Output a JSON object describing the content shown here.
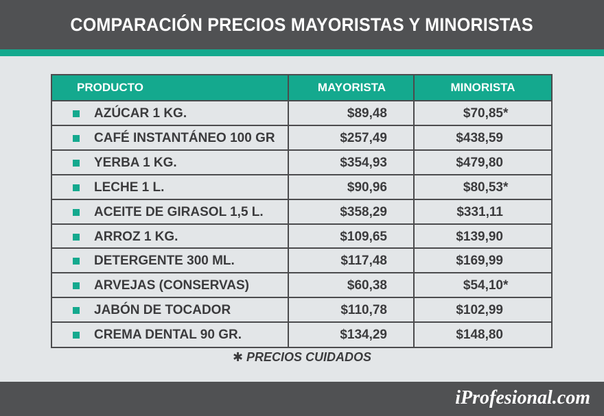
{
  "title": "COMPARACIÓN PRECIOS MAYORISTAS Y MINORISTAS",
  "table": {
    "headers": [
      "PRODUCTO",
      "MAYORISTA",
      "MINORISTA"
    ],
    "rows": [
      {
        "producto": "AZÚCAR 1 KG.",
        "mayorista": "$89,48",
        "minorista": "$70,85",
        "mark": "*"
      },
      {
        "producto": "CAFÉ INSTANTÁNEO 100 GR",
        "mayorista": "$257,49",
        "minorista": "$438,59",
        "mark": ""
      },
      {
        "producto": "YERBA 1 KG.",
        "mayorista": "$354,93",
        "minorista": "$479,80",
        "mark": ""
      },
      {
        "producto": "LECHE 1 L.",
        "mayorista": "$90,96",
        "minorista": "$80,53",
        "mark": "*"
      },
      {
        "producto": "ACEITE DE GIRASOL 1,5 L.",
        "mayorista": "$358,29",
        "minorista": "$331,11",
        "mark": ""
      },
      {
        "producto": "ARROZ 1 KG.",
        "mayorista": "$109,65",
        "minorista": "$139,90",
        "mark": ""
      },
      {
        "producto": "DETERGENTE 300 ML.",
        "mayorista": "$117,48",
        "minorista": "$169,99",
        "mark": ""
      },
      {
        "producto": "ARVEJAS (CONSERVAS)",
        "mayorista": "$60,38",
        "minorista": "$54,10",
        "mark": "*"
      },
      {
        "producto": "JABÓN DE TOCADOR",
        "mayorista": "$110,78",
        "minorista": "$102,99",
        "mark": ""
      },
      {
        "producto": "CREMA DENTAL 90 GR.",
        "mayorista": "$134,29",
        "minorista": "$148,80",
        "mark": ""
      }
    ]
  },
  "footnote": "✱ PRECIOS CUIDADOS",
  "logo": "iProfesional.com",
  "colors": {
    "header_bg": "#505153",
    "accent": "#14a98e",
    "background": "#e3e6e8",
    "text": "#3b3b3d"
  }
}
